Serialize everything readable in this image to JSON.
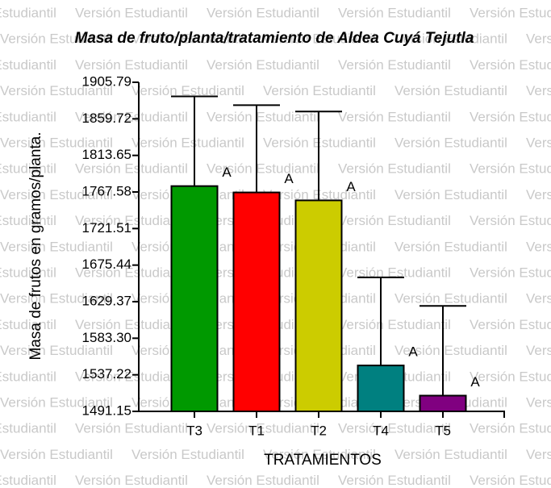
{
  "chart_data": {
    "type": "bar",
    "title": "Masa de fruto/planta/tratamiento de Aldea Cuyá Tejutla",
    "watermark": "Versión Estudiantil",
    "x_label": "TRATAMIENTOS",
    "y_label": "Masa de frutos en gramos/planta.",
    "categories": [
      "T3",
      "T1",
      "T2",
      "T4",
      "T5"
    ],
    "values": [
      1775,
      1767,
      1757,
      1549,
      1511
    ],
    "errors": [
      113,
      110,
      112,
      111,
      113
    ],
    "group_labels": [
      "A",
      "A",
      "A",
      "A",
      "A"
    ],
    "colors": [
      "#009900",
      "#ff0000",
      "#cccc00",
      "#008080",
      "#800080"
    ],
    "ylim": [
      1491.15,
      1905.79
    ],
    "yticks": [
      1491.15,
      1537.22,
      {
        "value": 1583.3,
        "label": "1583.30"
      },
      1629.37,
      1675.44,
      1721.51,
      1767.58,
      1813.65,
      1859.72,
      1905.79
    ]
  }
}
